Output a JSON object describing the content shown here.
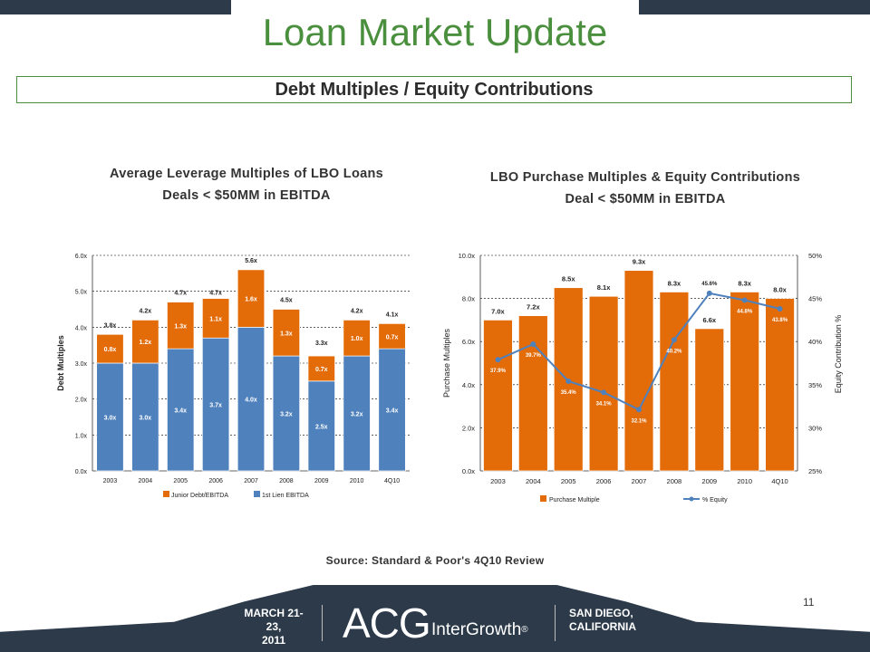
{
  "header": {
    "title": "Loan Market Update",
    "subtitle": "Debt Multiples / Equity Contributions"
  },
  "chart_data": [
    {
      "type": "bar",
      "stacked": true,
      "title": "Average Leverage Multiples of LBO Loans",
      "subtitle": "Deals < $50MM in EBITDA",
      "categories": [
        "2003",
        "2004",
        "2005",
        "2006",
        "2007",
        "2008",
        "2009",
        "2010",
        "4Q10"
      ],
      "series": [
        {
          "name": "1st Lien EBITDA",
          "values": [
            3.0,
            3.0,
            3.4,
            3.7,
            4.0,
            3.2,
            2.5,
            3.2,
            3.4
          ],
          "labels": [
            "3.0x",
            "3.0x",
            "3.4x",
            "3.7x",
            "4.0x",
            "3.2x",
            "2.5x",
            "3.2x",
            "3.4x"
          ],
          "color": "#4f81bd"
        },
        {
          "name": "Junior Debt/EBITDA",
          "values": [
            0.8,
            1.2,
            1.3,
            1.1,
            1.6,
            1.3,
            0.7,
            1.0,
            0.7
          ],
          "labels": [
            "0.8x",
            "1.2x",
            "1.3x",
            "1.1x",
            "1.6x",
            "1.3x",
            "0.7x",
            "1.0x",
            "0.7x"
          ],
          "color": "#e36c09"
        }
      ],
      "totals": [
        "3.8x",
        "4.2x",
        "4.7x",
        "4.7x",
        "5.6x",
        "4.5x",
        "3.3x",
        "4.2x",
        "4.1x"
      ],
      "total_values": [
        3.8,
        4.2,
        4.7,
        4.7,
        5.6,
        4.5,
        3.3,
        4.2,
        4.1
      ],
      "ylabel": "Debt Multiples",
      "ylim": [
        0,
        6
      ],
      "yticks": [
        "0.0x",
        "1.0x",
        "2.0x",
        "3.0x",
        "4.0x",
        "5.0x",
        "6.0x"
      ],
      "legend_order": [
        "Junior Debt/EBITDA",
        "1st Lien EBITDA"
      ],
      "legend_position": "bottom",
      "grid": true
    },
    {
      "type": "bar+line",
      "title": "LBO Purchase Multiples & Equity Contributions",
      "subtitle": "Deal < $50MM in EBITDA",
      "categories": [
        "2003",
        "2004",
        "2005",
        "2006",
        "2007",
        "2008",
        "2009",
        "2010",
        "4Q10"
      ],
      "bars": {
        "name": "Purchase Multiple",
        "values": [
          7.0,
          7.2,
          8.5,
          8.1,
          9.3,
          8.3,
          6.6,
          8.3,
          8.0
        ],
        "labels": [
          "7.0x",
          "7.2x",
          "8.5x",
          "8.1x",
          "9.3x",
          "8.3x",
          "6.6x",
          "8.3x",
          "8.0x"
        ],
        "color": "#e36c09"
      },
      "line": {
        "name": "% Equity",
        "values": [
          37.9,
          39.7,
          35.4,
          34.1,
          32.1,
          40.2,
          45.6,
          44.8,
          43.8
        ],
        "labels": [
          "37.9%",
          "39.7%",
          "35.4%",
          "34.1%",
          "32.1%",
          "40.2%",
          "45.6%",
          "44.8%",
          "43.8%"
        ],
        "color": "#4f81bd"
      },
      "ylabel": "Purchase Multiples",
      "ylim": [
        0,
        10
      ],
      "yticks": [
        "0.0x",
        "2.0x",
        "4.0x",
        "6.0x",
        "8.0x",
        "10.0x"
      ],
      "y2label": "Equity Contribution %",
      "y2lim": [
        25,
        50
      ],
      "y2ticks": [
        "25%",
        "30%",
        "35%",
        "40%",
        "45%",
        "50%"
      ],
      "legend_position": "bottom",
      "grid": true
    }
  ],
  "source": "Source: Standard & Poor's 4Q10 Review",
  "page_number": "11",
  "footer": {
    "date_line1": "MARCH 21-23,",
    "date_line2": "2011",
    "logo_main": "ACG",
    "logo_sub": "InterGrowth",
    "logo_mark": "®",
    "place_line1": "SAN DIEGO,",
    "place_line2": "CALIFORNIA"
  }
}
